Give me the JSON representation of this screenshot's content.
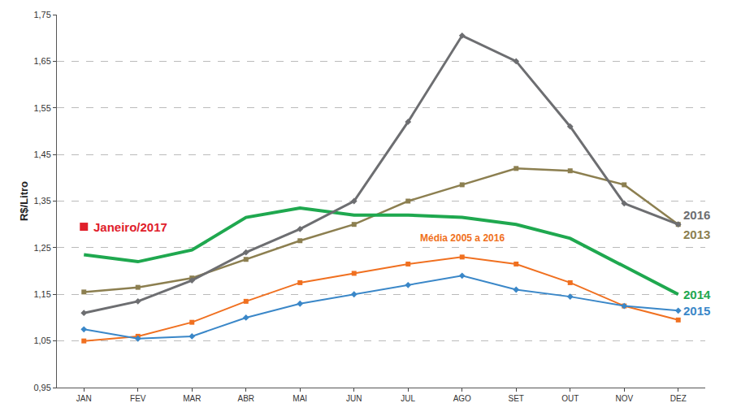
{
  "chart_data": {
    "type": "line",
    "y_label": "R$/Litro",
    "categories": [
      "JAN",
      "FEV",
      "MAR",
      "ABR",
      "MAI",
      "JUN",
      "JUL",
      "AGO",
      "SET",
      "OUT",
      "NOV",
      "DEZ"
    ],
    "series": [
      {
        "name": "Média 2005 a 2016",
        "color": "#f07020",
        "marker": "square",
        "line_style": "solid",
        "values": [
          1.05,
          1.06,
          1.09,
          1.135,
          1.175,
          1.195,
          1.215,
          1.23,
          1.215,
          1.175,
          1.125,
          1.095
        ]
      },
      {
        "name": "2015",
        "color": "#3a87c8",
        "marker": "diamond",
        "line_style": "solid",
        "values": [
          1.075,
          1.055,
          1.06,
          1.1,
          1.13,
          1.15,
          1.17,
          1.19,
          1.16,
          1.145,
          1.125,
          1.115
        ]
      },
      {
        "name": "2013",
        "color": "#8c7f50",
        "marker": "square",
        "line_style": "solid",
        "values": [
          1.155,
          1.165,
          1.185,
          1.225,
          1.265,
          1.3,
          1.35,
          1.385,
          1.42,
          1.415,
          1.385,
          1.3
        ]
      },
      {
        "name": "2014",
        "color": "#1fa84f",
        "marker": "none",
        "line_style": "solid",
        "values": [
          1.235,
          1.22,
          1.245,
          1.315,
          1.335,
          1.32,
          1.32,
          1.315,
          1.3,
          1.27,
          1.21,
          1.15
        ]
      },
      {
        "name": "2016",
        "color": "#6d6e71",
        "marker": "diamond",
        "line_style": "solid",
        "values": [
          1.11,
          1.135,
          1.18,
          1.24,
          1.29,
          1.35,
          1.52,
          1.705,
          1.65,
          1.51,
          1.345,
          1.3
        ]
      },
      {
        "name": "Janeiro/2017",
        "color": "#e0202b",
        "marker": "square",
        "line_style": "none",
        "values": [
          1.295,
          null,
          null,
          null,
          null,
          null,
          null,
          null,
          null,
          null,
          null,
          null
        ]
      }
    ],
    "ylim": [
      0.95,
      1.75
    ],
    "yticks": [
      {
        "value": 0.95,
        "label": "0,95"
      },
      {
        "value": 1.05,
        "label": "1,05"
      },
      {
        "value": 1.15,
        "label": "1,15"
      },
      {
        "value": 1.25,
        "label": "1,25"
      },
      {
        "value": 1.35,
        "label": "1,35"
      },
      {
        "value": 1.45,
        "label": "1,45"
      },
      {
        "value": 1.55,
        "label": "1,55"
      },
      {
        "value": 1.65,
        "label": "1,65"
      },
      {
        "value": 1.75,
        "label": "1,75"
      }
    ],
    "grid": true
  }
}
